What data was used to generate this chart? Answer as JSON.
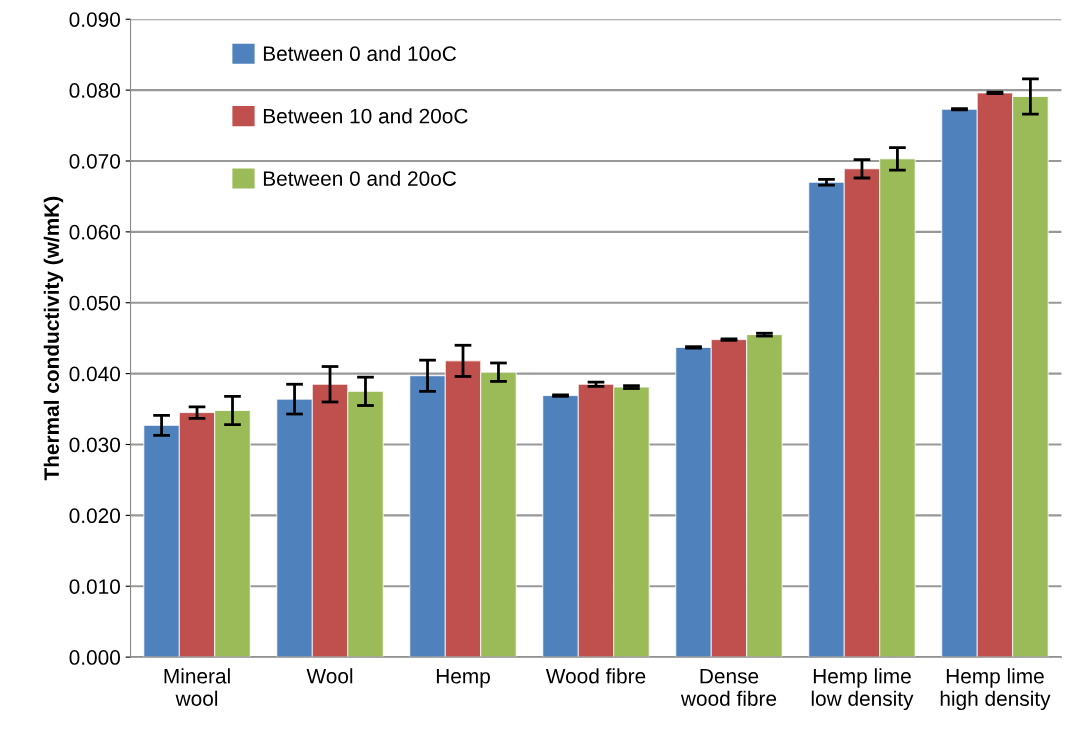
{
  "chart_data": {
    "type": "bar",
    "ylabel": "Thermal conductivity (w/mK)",
    "categories": [
      "Mineral\nwool",
      "Wool",
      "Hemp",
      "Wood fibre",
      "Dense\nwood fibre",
      "Hemp lime\nlow density",
      "Hemp lime\nhigh density"
    ],
    "series": [
      {
        "name": "Between 0 and 10oC",
        "color": "#4f81bd",
        "values": [
          0.0327,
          0.0364,
          0.0397,
          0.0369,
          0.0437,
          0.067,
          0.0773
        ],
        "errors": [
          0.0014,
          0.0021,
          0.0022,
          0.0001,
          0.0001,
          0.0004,
          0.0001
        ]
      },
      {
        "name": "Between 10 and 20oC",
        "color": "#c0504d",
        "values": [
          0.0345,
          0.0385,
          0.0418,
          0.0385,
          0.0448,
          0.0689,
          0.0796
        ],
        "errors": [
          0.0008,
          0.0025,
          0.0022,
          0.0003,
          0.0001,
          0.0013,
          0.0001
        ]
      },
      {
        "name": "Between 0 and 20oC",
        "color": "#9bbb59",
        "values": [
          0.0348,
          0.0375,
          0.0402,
          0.0381,
          0.0455,
          0.0703,
          0.0791
        ],
        "errors": [
          0.002,
          0.002,
          0.0013,
          0.0002,
          0.0002,
          0.0016,
          0.0025
        ]
      }
    ],
    "ylim": [
      0,
      0.09
    ],
    "yticks": [
      {
        "value": 0,
        "label": "0.000"
      },
      {
        "value": 0.01,
        "label": "0.010"
      },
      {
        "value": 0.02,
        "label": "0.020"
      },
      {
        "value": 0.03,
        "label": "0.030"
      },
      {
        "value": 0.04,
        "label": "0.040"
      },
      {
        "value": 0.05,
        "label": "0.050"
      },
      {
        "value": 0.06,
        "label": "0.060"
      },
      {
        "value": 0.07,
        "label": "0.070"
      },
      {
        "value": 0.08,
        "label": "0.080"
      },
      {
        "value": 0.09,
        "label": "0.090"
      }
    ],
    "grid": "y",
    "legend": "top left"
  }
}
